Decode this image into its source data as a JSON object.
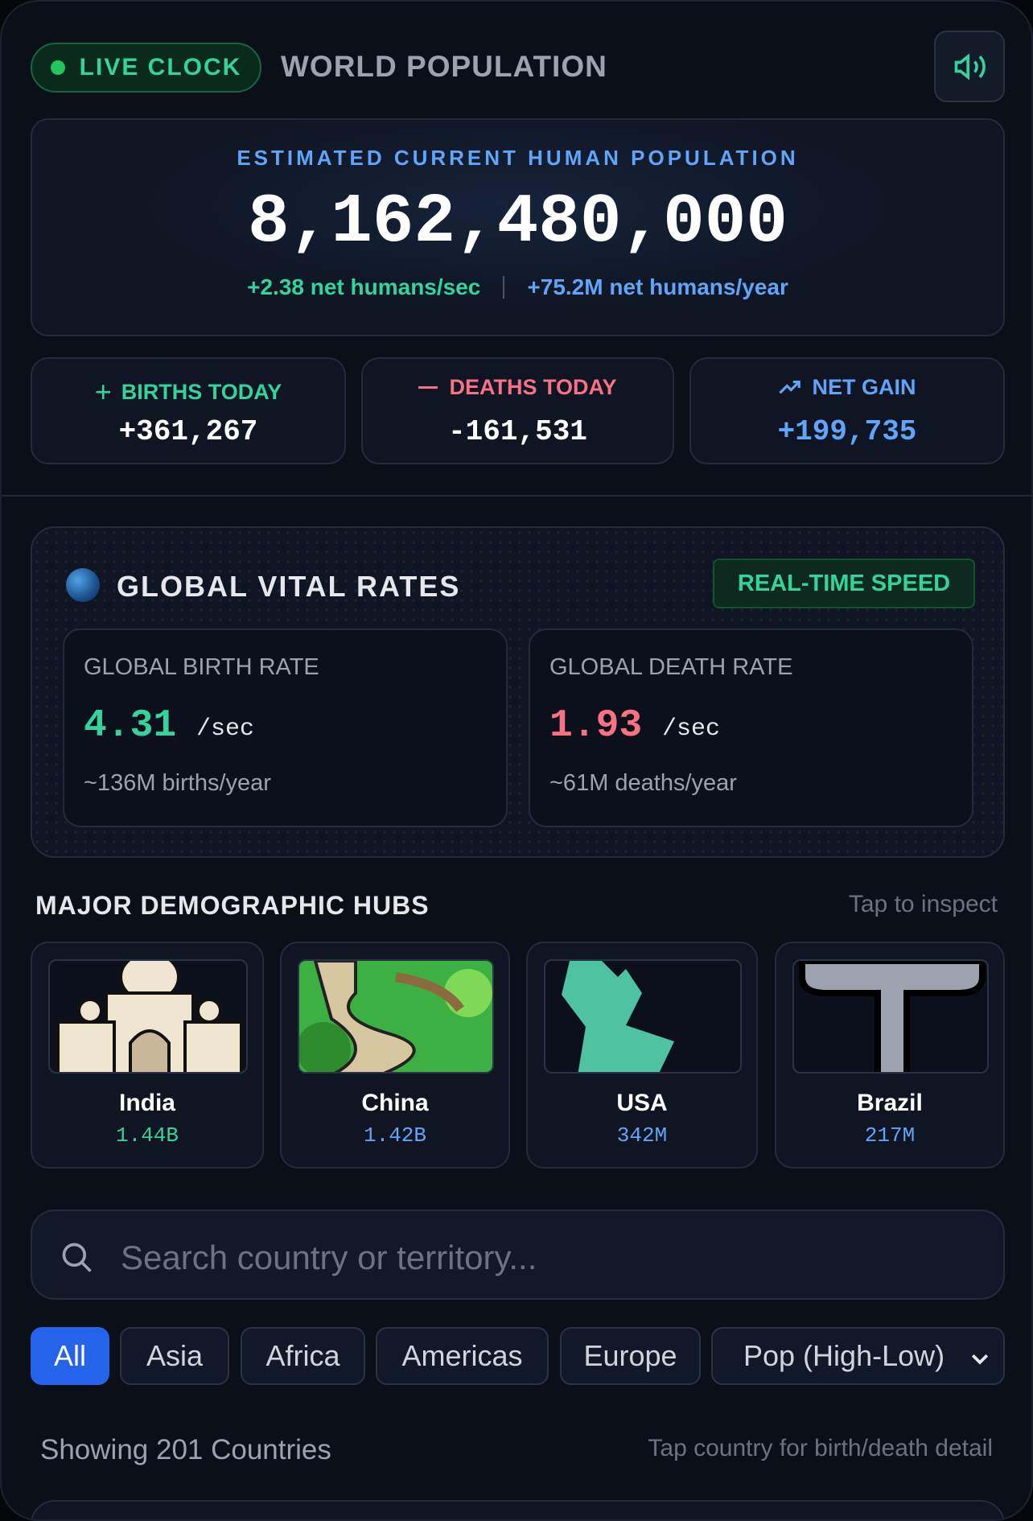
{
  "header": {
    "badge": "LIVE CLOCK",
    "title": "WORLD POPULATION"
  },
  "population": {
    "label": "ESTIMATED CURRENT HUMAN POPULATION",
    "value": "8,162,480,000",
    "per_sec": "+2.38 net humans/sec",
    "per_year": "+75.2M net humans/year"
  },
  "stats": [
    {
      "label": "BIRTHS TODAY",
      "value": "+361,267"
    },
    {
      "label": "DEATHS TODAY",
      "value": "-161,531"
    },
    {
      "label": "NET GAIN",
      "value": "+199,735"
    }
  ],
  "vital_rates": {
    "title": "GLOBAL VITAL RATES",
    "badge": "REAL-TIME SPEED",
    "cards": [
      {
        "label": "GLOBAL BIRTH RATE",
        "value": "4.31",
        "unit": "/sec",
        "note": "~136M births/year"
      },
      {
        "label": "GLOBAL DEATH RATE",
        "value": "1.93",
        "unit": "/sec",
        "note": "~61M deaths/year"
      }
    ]
  },
  "hubs": {
    "title": "MAJOR DEMOGRAPHIC HUBS",
    "hint": "Tap to inspect",
    "items": [
      {
        "name": "India",
        "population": "1.44B"
      },
      {
        "name": "China",
        "population": "1.42B"
      },
      {
        "name": "USA",
        "population": "342M"
      },
      {
        "name": "Brazil",
        "population": "217M"
      }
    ]
  },
  "search": {
    "placeholder": "Search country or territory..."
  },
  "filters": [
    "All",
    "Asia",
    "Africa",
    "Americas",
    "Europe"
  ],
  "sort": "Pop (High-Low)",
  "footer": {
    "count": "Showing 201 Countries",
    "hint": "Tap country for birth/death detail"
  }
}
